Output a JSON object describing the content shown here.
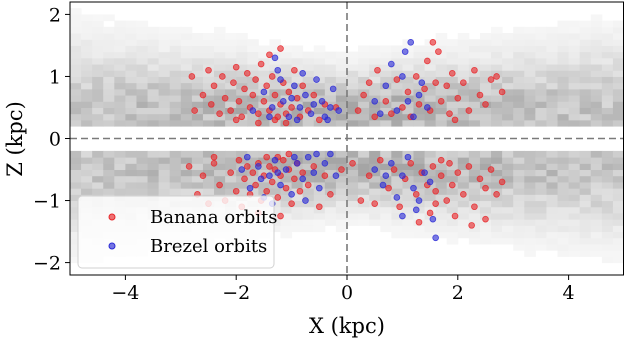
{
  "chart_data": {
    "type": "scatter",
    "title": "",
    "xlabel": "X (kpc)",
    "ylabel": "Z (kpc)",
    "xlim": [
      -5,
      5
    ],
    "ylim": [
      -2.2,
      2.2
    ],
    "xticks": [
      -4,
      -2,
      0,
      2,
      4
    ],
    "yticks": [
      -2,
      -1,
      0,
      1,
      2
    ],
    "xtick_labels": [
      "−4",
      "−2",
      "0",
      "2",
      "4"
    ],
    "ytick_labels": [
      "−2",
      "−1",
      "0",
      "1",
      "2"
    ],
    "grid": false,
    "reference_lines": [
      {
        "axis": "x",
        "value": 0,
        "style": "dashed"
      },
      {
        "axis": "y",
        "value": 0,
        "style": "dashed"
      }
    ],
    "legend": {
      "placement": "lower-left"
    },
    "background": {
      "type": "heatmap",
      "colormap": "greys",
      "description_hidden": true
    },
    "series": [
      {
        "name": "Banana orbits",
        "color": "#e8262a",
        "points": [
          [
            -2.8,
            1.0
          ],
          [
            -2.75,
            0.45
          ],
          [
            -2.6,
            0.7
          ],
          [
            -2.5,
            1.1
          ],
          [
            -2.45,
            0.55
          ],
          [
            -2.4,
            0.85
          ],
          [
            -2.3,
            0.4
          ],
          [
            -2.25,
            1.0
          ],
          [
            -2.2,
            0.65
          ],
          [
            -2.1,
            0.45
          ],
          [
            -2.05,
            0.9
          ],
          [
            -2.0,
            1.15
          ],
          [
            -1.95,
            0.6
          ],
          [
            -1.9,
            0.35
          ],
          [
            -1.85,
            0.8
          ],
          [
            -1.8,
            1.05
          ],
          [
            -1.75,
            0.5
          ],
          [
            -1.7,
            0.7
          ],
          [
            -1.65,
            0.95
          ],
          [
            -1.6,
            0.4
          ],
          [
            -1.55,
            1.2
          ],
          [
            -1.5,
            0.6
          ],
          [
            -1.45,
            0.85
          ],
          [
            -1.4,
            0.45
          ],
          [
            -1.35,
            1.0
          ],
          [
            -1.3,
            0.7
          ],
          [
            -1.25,
            0.35
          ],
          [
            -1.2,
            0.55
          ],
          [
            -1.15,
            0.9
          ],
          [
            -1.1,
            0.4
          ],
          [
            -1.05,
            0.75
          ],
          [
            -1.0,
            0.5
          ],
          [
            -0.95,
            1.1
          ],
          [
            -0.9,
            0.65
          ],
          [
            -0.85,
            0.35
          ],
          [
            -0.8,
            0.85
          ],
          [
            -0.7,
            0.45
          ],
          [
            -0.6,
            0.7
          ],
          [
            -0.5,
            0.3
          ],
          [
            -0.4,
            0.55
          ],
          [
            -1.6,
            0.25
          ],
          [
            -1.3,
            0.3
          ],
          [
            -1.1,
            0.25
          ],
          [
            -2.0,
            0.3
          ],
          [
            -1.4,
            1.35
          ],
          [
            -1.2,
            1.45
          ],
          [
            -0.2,
            0.5
          ],
          [
            0.2,
            0.45
          ],
          [
            0.4,
            0.9
          ],
          [
            0.5,
            0.35
          ],
          [
            0.55,
            1.1
          ],
          [
            0.7,
            0.6
          ],
          [
            0.8,
            0.4
          ],
          [
            0.9,
            0.95
          ],
          [
            1.0,
            0.5
          ],
          [
            1.1,
            0.75
          ],
          [
            1.15,
            0.35
          ],
          [
            1.25,
            1.0
          ],
          [
            1.3,
            0.55
          ],
          [
            1.4,
            0.8
          ],
          [
            1.45,
            1.25
          ],
          [
            1.5,
            0.45
          ],
          [
            1.6,
            0.9
          ],
          [
            1.65,
            1.4
          ],
          [
            1.7,
            0.6
          ],
          [
            1.8,
            0.85
          ],
          [
            1.85,
            0.4
          ],
          [
            1.9,
            1.05
          ],
          [
            2.0,
            0.65
          ],
          [
            2.1,
            0.9
          ],
          [
            2.2,
            0.45
          ],
          [
            2.3,
            1.1
          ],
          [
            2.4,
            0.7
          ],
          [
            2.5,
            0.55
          ],
          [
            2.6,
            0.95
          ],
          [
            2.7,
            1.0
          ],
          [
            2.8,
            0.75
          ],
          [
            1.55,
            1.55
          ],
          [
            0.3,
            0.7
          ],
          [
            1.95,
            0.3
          ],
          [
            -2.85,
            -0.45
          ],
          [
            -2.7,
            -0.9
          ],
          [
            -2.6,
            -0.6
          ],
          [
            -2.5,
            -1.05
          ],
          [
            -2.4,
            -0.4
          ],
          [
            -2.3,
            -0.75
          ],
          [
            -2.2,
            -1.0
          ],
          [
            -2.1,
            -0.55
          ],
          [
            -2.0,
            -0.85
          ],
          [
            -1.95,
            -0.35
          ],
          [
            -1.9,
            -1.1
          ],
          [
            -1.85,
            -0.65
          ],
          [
            -1.8,
            -0.45
          ],
          [
            -1.75,
            -0.9
          ],
          [
            -1.7,
            -0.55
          ],
          [
            -1.65,
            -0.75
          ],
          [
            -1.6,
            -0.4
          ],
          [
            -1.55,
            -1.0
          ],
          [
            -1.5,
            -0.6
          ],
          [
            -1.45,
            -0.85
          ],
          [
            -1.4,
            -0.45
          ],
          [
            -1.35,
            -0.7
          ],
          [
            -1.3,
            -0.5
          ],
          [
            -1.25,
            -0.95
          ],
          [
            -1.2,
            -0.6
          ],
          [
            -1.15,
            -0.35
          ],
          [
            -1.1,
            -0.8
          ],
          [
            -1.05,
            -0.5
          ],
          [
            -1.0,
            -1.05
          ],
          [
            -0.95,
            -0.65
          ],
          [
            -0.9,
            -0.4
          ],
          [
            -0.85,
            -0.85
          ],
          [
            -0.8,
            -0.55
          ],
          [
            -0.7,
            -0.75
          ],
          [
            -0.6,
            -0.45
          ],
          [
            -0.5,
            -1.1
          ],
          [
            -0.4,
            -0.6
          ],
          [
            -1.6,
            -1.2
          ],
          [
            -1.2,
            -1.25
          ],
          [
            -0.3,
            -0.9
          ],
          [
            -1.45,
            -0.3
          ],
          [
            -1.25,
            -0.3
          ],
          [
            -1.05,
            -0.25
          ],
          [
            -2.4,
            -0.3
          ],
          [
            -0.1,
            -0.5
          ],
          [
            0.1,
            -0.4
          ],
          [
            0.25,
            -1.0
          ],
          [
            0.4,
            -0.6
          ],
          [
            0.6,
            -0.35
          ],
          [
            0.75,
            -0.8
          ],
          [
            0.85,
            -0.5
          ],
          [
            0.95,
            -1.1
          ],
          [
            1.05,
            -0.65
          ],
          [
            1.15,
            -0.4
          ],
          [
            1.25,
            -0.9
          ],
          [
            1.35,
            -0.55
          ],
          [
            1.45,
            -0.75
          ],
          [
            1.5,
            -1.2
          ],
          [
            1.55,
            -0.45
          ],
          [
            1.6,
            -0.85
          ],
          [
            1.7,
            -0.6
          ],
          [
            1.8,
            -1.0
          ],
          [
            1.85,
            -0.4
          ],
          [
            1.9,
            -0.75
          ],
          [
            2.0,
            -0.55
          ],
          [
            2.1,
            -0.9
          ],
          [
            2.2,
            -0.45
          ],
          [
            2.3,
            -1.1
          ],
          [
            2.4,
            -0.65
          ],
          [
            2.5,
            -0.8
          ],
          [
            2.6,
            -0.5
          ],
          [
            2.7,
            -0.9
          ],
          [
            1.95,
            -1.25
          ],
          [
            1.3,
            -1.35
          ],
          [
            2.5,
            -1.3
          ],
          [
            0.5,
            -1.05
          ],
          [
            1.7,
            -0.35
          ],
          [
            1.6,
            -1.05
          ],
          [
            2.8,
            -0.7
          ],
          [
            2.25,
            -1.4
          ]
        ]
      },
      {
        "name": "Brezel orbits",
        "color": "#2b2bd6",
        "points": [
          [
            -1.7,
            0.45
          ],
          [
            -1.5,
            0.75
          ],
          [
            -1.35,
            0.5
          ],
          [
            -1.25,
            1.1
          ],
          [
            -1.15,
            0.6
          ],
          [
            -1.05,
            0.35
          ],
          [
            -0.95,
            0.85
          ],
          [
            -0.85,
            0.5
          ],
          [
            -0.75,
            0.7
          ],
          [
            -0.65,
            0.4
          ],
          [
            -0.55,
            0.95
          ],
          [
            -0.45,
            0.6
          ],
          [
            -0.35,
            0.3
          ],
          [
            -0.25,
            0.8
          ],
          [
            -0.15,
            0.45
          ],
          [
            -1.3,
            1.3
          ],
          [
            -1.2,
            0.95
          ],
          [
            -0.9,
            0.3
          ],
          [
            -0.6,
            0.55
          ],
          [
            -0.4,
            0.35
          ],
          [
            -1.4,
            0.35
          ],
          [
            -0.8,
            1.05
          ],
          [
            -0.3,
            0.5
          ],
          [
            -1.0,
            0.65
          ],
          [
            0.5,
            0.6
          ],
          [
            0.7,
            0.85
          ],
          [
            0.9,
            0.45
          ],
          [
            1.0,
            1.0
          ],
          [
            1.1,
            0.6
          ],
          [
            1.2,
            0.35
          ],
          [
            1.35,
            0.9
          ],
          [
            1.45,
            0.5
          ],
          [
            0.8,
            1.2
          ],
          [
            1.05,
            1.4
          ],
          [
            1.15,
            1.55
          ],
          [
            0.6,
            0.4
          ],
          [
            1.3,
            0.7
          ],
          [
            -1.9,
            -0.5
          ],
          [
            -1.75,
            -0.8
          ],
          [
            -1.6,
            -0.45
          ],
          [
            -1.5,
            -0.95
          ],
          [
            -1.4,
            -0.6
          ],
          [
            -1.3,
            -0.35
          ],
          [
            -1.2,
            -0.75
          ],
          [
            -1.1,
            -0.5
          ],
          [
            -1.0,
            -0.9
          ],
          [
            -0.9,
            -0.4
          ],
          [
            -0.8,
            -0.65
          ],
          [
            -0.7,
            -0.3
          ],
          [
            -0.6,
            -0.55
          ],
          [
            -0.5,
            -0.8
          ],
          [
            -0.4,
            -0.4
          ],
          [
            -0.3,
            -0.25
          ],
          [
            -0.2,
            -0.6
          ],
          [
            -1.8,
            -0.3
          ],
          [
            -1.35,
            -1.05
          ],
          [
            -0.55,
            -0.25
          ],
          [
            -1.55,
            -0.65
          ],
          [
            -1.25,
            -0.55
          ],
          [
            -0.95,
            -0.3
          ],
          [
            -0.75,
            -1.0
          ],
          [
            0.5,
            -0.5
          ],
          [
            0.65,
            -0.75
          ],
          [
            0.8,
            -0.4
          ],
          [
            0.9,
            -0.95
          ],
          [
            1.0,
            -0.6
          ],
          [
            1.1,
            -0.3
          ],
          [
            1.2,
            -0.8
          ],
          [
            1.3,
            -1.0
          ],
          [
            1.4,
            -0.55
          ],
          [
            1.5,
            -0.7
          ],
          [
            1.55,
            -1.3
          ],
          [
            1.6,
            -1.6
          ],
          [
            1.25,
            -1.15
          ],
          [
            1.0,
            -1.25
          ],
          [
            0.7,
            -0.6
          ]
        ]
      }
    ]
  }
}
